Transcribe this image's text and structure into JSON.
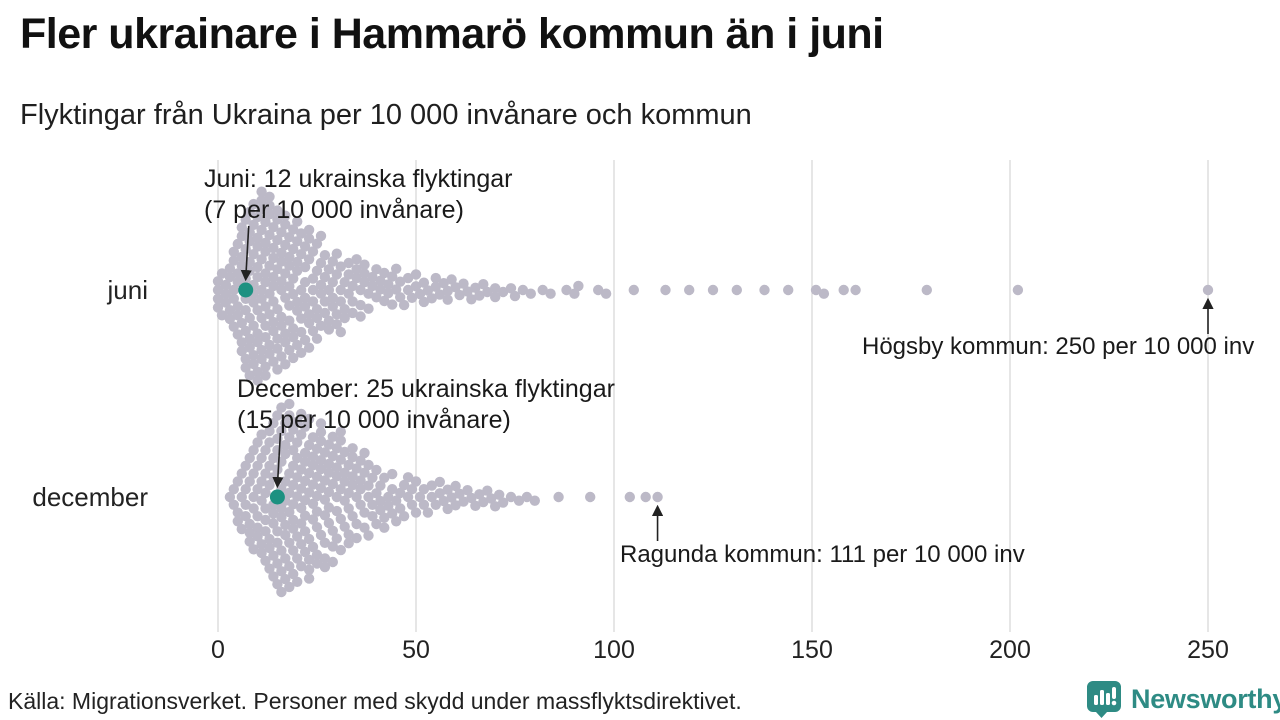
{
  "title": "Fler ukrainare i Hammarö kommun än i juni",
  "subtitle": "Flyktingar från Ukraina per 10 000 invånare och kommun",
  "source": "Källa: Migrationsverket. Personer med skydd under massflyktsdirektivet.",
  "branding": {
    "name": "Newsworthy",
    "color": "#2e8b84",
    "icon": "newsworthy-speech-bubble-bar-chart-icon"
  },
  "colors": {
    "dot": "#bcb9c7",
    "highlight": "#1d9181",
    "gridline": "#d9d9d9",
    "axis_text": "#222222",
    "arrow": "#222222"
  },
  "chart_data": {
    "type": "beeswarm",
    "unit": "per 10 000 invånare",
    "x_ticks": [
      0,
      50,
      100,
      150,
      200,
      250
    ],
    "x_range": [
      0,
      250
    ],
    "grid": true,
    "categories": [
      "juni",
      "december"
    ],
    "rows": [
      {
        "label": "juni",
        "highlight": {
          "value": 7,
          "line1": "Juni: 12 ukrainska flyktingar",
          "line2": "(7 per 10 000 invånare)",
          "kommun": "Hammarö"
        },
        "outlier": {
          "value": 250,
          "label": "Högsby kommun: 250 per 10 000 inv"
        },
        "values_hist": [
          [
            0,
            4
          ],
          [
            1,
            2
          ],
          [
            2,
            3
          ],
          [
            3,
            4
          ],
          [
            4,
            5
          ],
          [
            5,
            6
          ],
          [
            6,
            7
          ],
          [
            7,
            8
          ],
          [
            8,
            9
          ],
          [
            9,
            9
          ],
          [
            10,
            10
          ],
          [
            11,
            10
          ],
          [
            12,
            10
          ],
          [
            13,
            9
          ],
          [
            14,
            9
          ],
          [
            15,
            8
          ],
          [
            16,
            8
          ],
          [
            17,
            8
          ],
          [
            18,
            7
          ],
          [
            19,
            7
          ],
          [
            20,
            7
          ],
          [
            21,
            6
          ],
          [
            22,
            6
          ],
          [
            23,
            6
          ],
          [
            24,
            5
          ],
          [
            25,
            5
          ],
          [
            26,
            5
          ],
          [
            27,
            4
          ],
          [
            28,
            4
          ],
          [
            29,
            4
          ],
          [
            30,
            4
          ],
          [
            31,
            4
          ],
          [
            32,
            3
          ],
          [
            33,
            3
          ],
          [
            34,
            3
          ],
          [
            35,
            3
          ],
          [
            36,
            3
          ],
          [
            37,
            3
          ],
          [
            38,
            2
          ],
          [
            39,
            2
          ],
          [
            40,
            2
          ],
          [
            41,
            2
          ],
          [
            42,
            2
          ],
          [
            43,
            2
          ],
          [
            44,
            2
          ],
          [
            45,
            2
          ],
          [
            46,
            2
          ],
          [
            47,
            1
          ],
          [
            48,
            2
          ],
          [
            49,
            1
          ],
          [
            50,
            2
          ],
          [
            51,
            1
          ],
          [
            52,
            2
          ],
          [
            53,
            1
          ],
          [
            54,
            1
          ],
          [
            55,
            2
          ],
          [
            56,
            1
          ],
          [
            57,
            1
          ],
          [
            58,
            2
          ],
          [
            59,
            1
          ],
          [
            60,
            1
          ],
          [
            61,
            1
          ],
          [
            62,
            1
          ],
          [
            63,
            1
          ],
          [
            64,
            1
          ],
          [
            65,
            1
          ],
          [
            66,
            1
          ],
          [
            67,
            1
          ],
          [
            68,
            1
          ],
          [
            70,
            2
          ],
          [
            72,
            1
          ],
          [
            74,
            1
          ],
          [
            75,
            1
          ],
          [
            77,
            1
          ],
          [
            79,
            1
          ],
          [
            82,
            1
          ],
          [
            84,
            1
          ],
          [
            88,
            1
          ],
          [
            90,
            1
          ],
          [
            91,
            1
          ],
          [
            96,
            1
          ],
          [
            98,
            1
          ],
          [
            105,
            1
          ],
          [
            113,
            1
          ],
          [
            119,
            1
          ],
          [
            125,
            1
          ],
          [
            131,
            1
          ],
          [
            138,
            1
          ],
          [
            144,
            1
          ],
          [
            151,
            1
          ],
          [
            153,
            1
          ],
          [
            158,
            1
          ],
          [
            161,
            1
          ],
          [
            179,
            1
          ],
          [
            202,
            1
          ],
          [
            250,
            1
          ]
        ]
      },
      {
        "label": "december",
        "highlight": {
          "value": 15,
          "line1": "December: 25 ukrainska flyktingar",
          "line2": "(15 per 10 000 invånare)",
          "kommun": "Hammarö"
        },
        "outlier": {
          "value": 111,
          "label": "Ragunda kommun: 111 per 10 000 inv"
        },
        "values_hist": [
          [
            3,
            1
          ],
          [
            4,
            2
          ],
          [
            5,
            3
          ],
          [
            6,
            3
          ],
          [
            7,
            4
          ],
          [
            8,
            5
          ],
          [
            9,
            5
          ],
          [
            10,
            6
          ],
          [
            11,
            6
          ],
          [
            12,
            7
          ],
          [
            13,
            7
          ],
          [
            14,
            8
          ],
          [
            15,
            8
          ],
          [
            16,
            9
          ],
          [
            17,
            9
          ],
          [
            18,
            9
          ],
          [
            19,
            9
          ],
          [
            20,
            8
          ],
          [
            21,
            8
          ],
          [
            22,
            8
          ],
          [
            23,
            8
          ],
          [
            24,
            7
          ],
          [
            25,
            7
          ],
          [
            26,
            7
          ],
          [
            27,
            7
          ],
          [
            28,
            6
          ],
          [
            29,
            6
          ],
          [
            30,
            6
          ],
          [
            31,
            6
          ],
          [
            32,
            5
          ],
          [
            33,
            5
          ],
          [
            34,
            5
          ],
          [
            35,
            4
          ],
          [
            36,
            4
          ],
          [
            37,
            4
          ],
          [
            38,
            4
          ],
          [
            39,
            3
          ],
          [
            40,
            3
          ],
          [
            41,
            3
          ],
          [
            42,
            3
          ],
          [
            43,
            2
          ],
          [
            44,
            3
          ],
          [
            45,
            2
          ],
          [
            46,
            2
          ],
          [
            47,
            2
          ],
          [
            48,
            2
          ],
          [
            49,
            2
          ],
          [
            50,
            2
          ],
          [
            51,
            1
          ],
          [
            52,
            2
          ],
          [
            53,
            1
          ],
          [
            54,
            2
          ],
          [
            55,
            1
          ],
          [
            56,
            2
          ],
          [
            57,
            1
          ],
          [
            58,
            2
          ],
          [
            59,
            1
          ],
          [
            60,
            2
          ],
          [
            61,
            1
          ],
          [
            62,
            1
          ],
          [
            63,
            1
          ],
          [
            64,
            1
          ],
          [
            65,
            1
          ],
          [
            66,
            1
          ],
          [
            67,
            1
          ],
          [
            68,
            1
          ],
          [
            69,
            1
          ],
          [
            70,
            1
          ],
          [
            71,
            1
          ],
          [
            72,
            1
          ],
          [
            74,
            1
          ],
          [
            76,
            1
          ],
          [
            78,
            1
          ],
          [
            80,
            1
          ],
          [
            86,
            1
          ],
          [
            94,
            1
          ],
          [
            104,
            1
          ],
          [
            108,
            1
          ],
          [
            111,
            1
          ]
        ]
      }
    ]
  }
}
